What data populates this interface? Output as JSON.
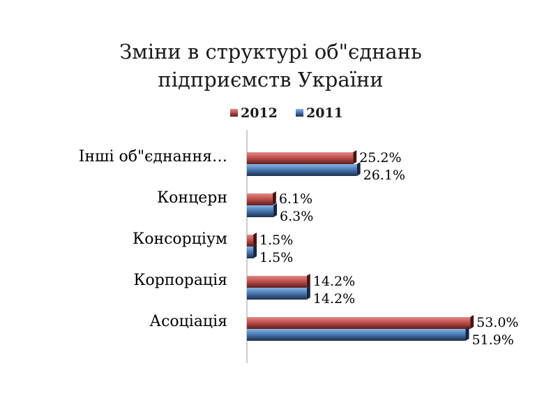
{
  "chart_data": {
    "type": "bar",
    "orientation": "horizontal",
    "title": [
      "Зміни в структурі об\"єднань",
      "підприємств України"
    ],
    "categories": [
      "Інші об\"єднання…",
      "Концерн",
      "Консорціум",
      "Корпорація",
      "Асоціація"
    ],
    "series": [
      {
        "name": "2012",
        "color": "#c0504d",
        "values": [
          25.2,
          6.1,
          1.5,
          14.2,
          53.0
        ],
        "labels": [
          "25.2%",
          "6.1%",
          "1.5%",
          "14.2%",
          "53.0%"
        ]
      },
      {
        "name": "2011",
        "color": "#4f81bd",
        "values": [
          26.1,
          6.3,
          1.5,
          14.2,
          51.9
        ],
        "labels": [
          "26.1%",
          "6.3%",
          "1.5%",
          "14.2%",
          "51.9%"
        ]
      }
    ],
    "xlim": [
      0,
      60
    ],
    "grid": false,
    "legend_position": "top"
  }
}
